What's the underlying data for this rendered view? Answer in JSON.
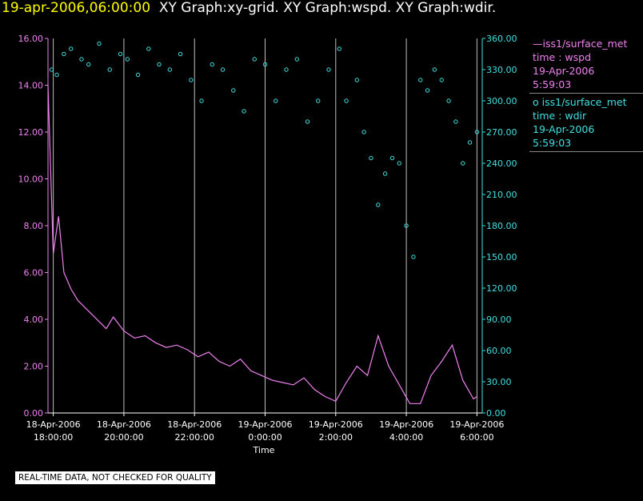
{
  "header": {
    "timestamp": "19-apr-2006,06:00:00",
    "graphs": "XY Graph:xy-grid.  XY Graph:wspd.  XY Graph:wdir."
  },
  "legend": {
    "wspd": {
      "line1": "—iss1/surface_met",
      "line2": "time : wspd",
      "line3": "19-Apr-2006",
      "line4": "5:59:03"
    },
    "wdir": {
      "line1": "o  iss1/surface_met",
      "line2": "time : wdir",
      "line3": "19-Apr-2006",
      "line4": "5:59:03"
    }
  },
  "note": "REAL-TIME DATA, NOT CHECKED FOR QUALITY",
  "colors": {
    "wspd": "#ee82ee",
    "wdir": "#40e0e0",
    "grid": "#c0c0c0",
    "title_ts": "#ffff00"
  },
  "chart_data": {
    "type": "line",
    "xlabel": "Time",
    "x_range_hours": [
      -0.15,
      12.15
    ],
    "x_ticks": [
      {
        "hour": 0,
        "line1": "18-Apr-2006",
        "line2": "18:00:00"
      },
      {
        "hour": 2,
        "line1": "18-Apr-2006",
        "line2": "20:00:00"
      },
      {
        "hour": 4,
        "line1": "18-Apr-2006",
        "line2": "22:00:00"
      },
      {
        "hour": 6,
        "line1": "19-Apr-2006",
        "line2": "0:00:00"
      },
      {
        "hour": 8,
        "line1": "19-Apr-2006",
        "line2": "2:00:00"
      },
      {
        "hour": 10,
        "line1": "19-Apr-2006",
        "line2": "4:00:00"
      },
      {
        "hour": 12,
        "line1": "19-Apr-2006",
        "line2": "6:00:00"
      }
    ],
    "y_left": {
      "name": "wspd",
      "range": [
        0,
        16
      ],
      "ticks": [
        "0.00",
        "2.00",
        "4.00",
        "6.00",
        "8.00",
        "10.00",
        "12.00",
        "14.00",
        "16.00"
      ]
    },
    "y_right": {
      "name": "wdir",
      "range": [
        0,
        360
      ],
      "ticks": [
        "0.00",
        "30.00",
        "60.00",
        "90.00",
        "120.00",
        "150.00",
        "180.00",
        "210.00",
        "240.00",
        "270.00",
        "300.00",
        "330.00",
        "360.00"
      ]
    },
    "series": [
      {
        "name": "iss1/surface_met wspd",
        "axis": "left",
        "style": "line",
        "x": [
          -0.15,
          0.0,
          0.15,
          0.3,
          0.5,
          0.7,
          0.9,
          1.1,
          1.3,
          1.5,
          1.7,
          2.0,
          2.3,
          2.6,
          2.9,
          3.2,
          3.5,
          3.8,
          4.1,
          4.4,
          4.7,
          5.0,
          5.3,
          5.6,
          5.9,
          6.2,
          6.5,
          6.8,
          7.1,
          7.4,
          7.7,
          8.0,
          8.3,
          8.6,
          8.9,
          9.2,
          9.5,
          9.8,
          10.1,
          10.4,
          10.7,
          11.0,
          11.3,
          11.6,
          11.9,
          12.0
        ],
        "y": [
          14.0,
          6.8,
          8.4,
          6.0,
          5.3,
          4.8,
          4.5,
          4.2,
          3.9,
          3.6,
          4.1,
          3.5,
          3.2,
          3.3,
          3.0,
          2.8,
          2.9,
          2.7,
          2.4,
          2.6,
          2.2,
          2.0,
          2.3,
          1.8,
          1.6,
          1.4,
          1.3,
          1.2,
          1.5,
          1.0,
          0.7,
          0.5,
          1.3,
          2.0,
          1.6,
          3.3,
          2.0,
          1.2,
          0.4,
          0.4,
          1.6,
          2.2,
          2.9,
          1.4,
          0.6,
          0.7
        ]
      },
      {
        "name": "iss1/surface_met wdir",
        "axis": "right",
        "style": "scatter",
        "x": [
          -0.05,
          0.1,
          0.3,
          0.5,
          0.8,
          1.0,
          1.3,
          1.6,
          1.9,
          2.1,
          2.4,
          2.7,
          3.0,
          3.3,
          3.6,
          3.9,
          4.2,
          4.5,
          4.8,
          5.1,
          5.4,
          5.7,
          6.0,
          6.3,
          6.6,
          6.9,
          7.2,
          7.5,
          7.8,
          8.1,
          8.3,
          8.6,
          8.8,
          9.0,
          9.2,
          9.4,
          9.6,
          9.8,
          10.0,
          10.2,
          10.4,
          10.6,
          10.8,
          11.0,
          11.2,
          11.4,
          11.6,
          11.8,
          12.0
        ],
        "y": [
          330,
          325,
          345,
          350,
          340,
          335,
          355,
          330,
          345,
          340,
          325,
          350,
          335,
          330,
          345,
          320,
          300,
          335,
          330,
          310,
          290,
          340,
          335,
          300,
          330,
          340,
          280,
          300,
          330,
          350,
          300,
          320,
          270,
          245,
          200,
          230,
          245,
          240,
          180,
          150,
          320,
          310,
          330,
          320,
          300,
          280,
          240,
          260,
          270
        ]
      }
    ]
  }
}
